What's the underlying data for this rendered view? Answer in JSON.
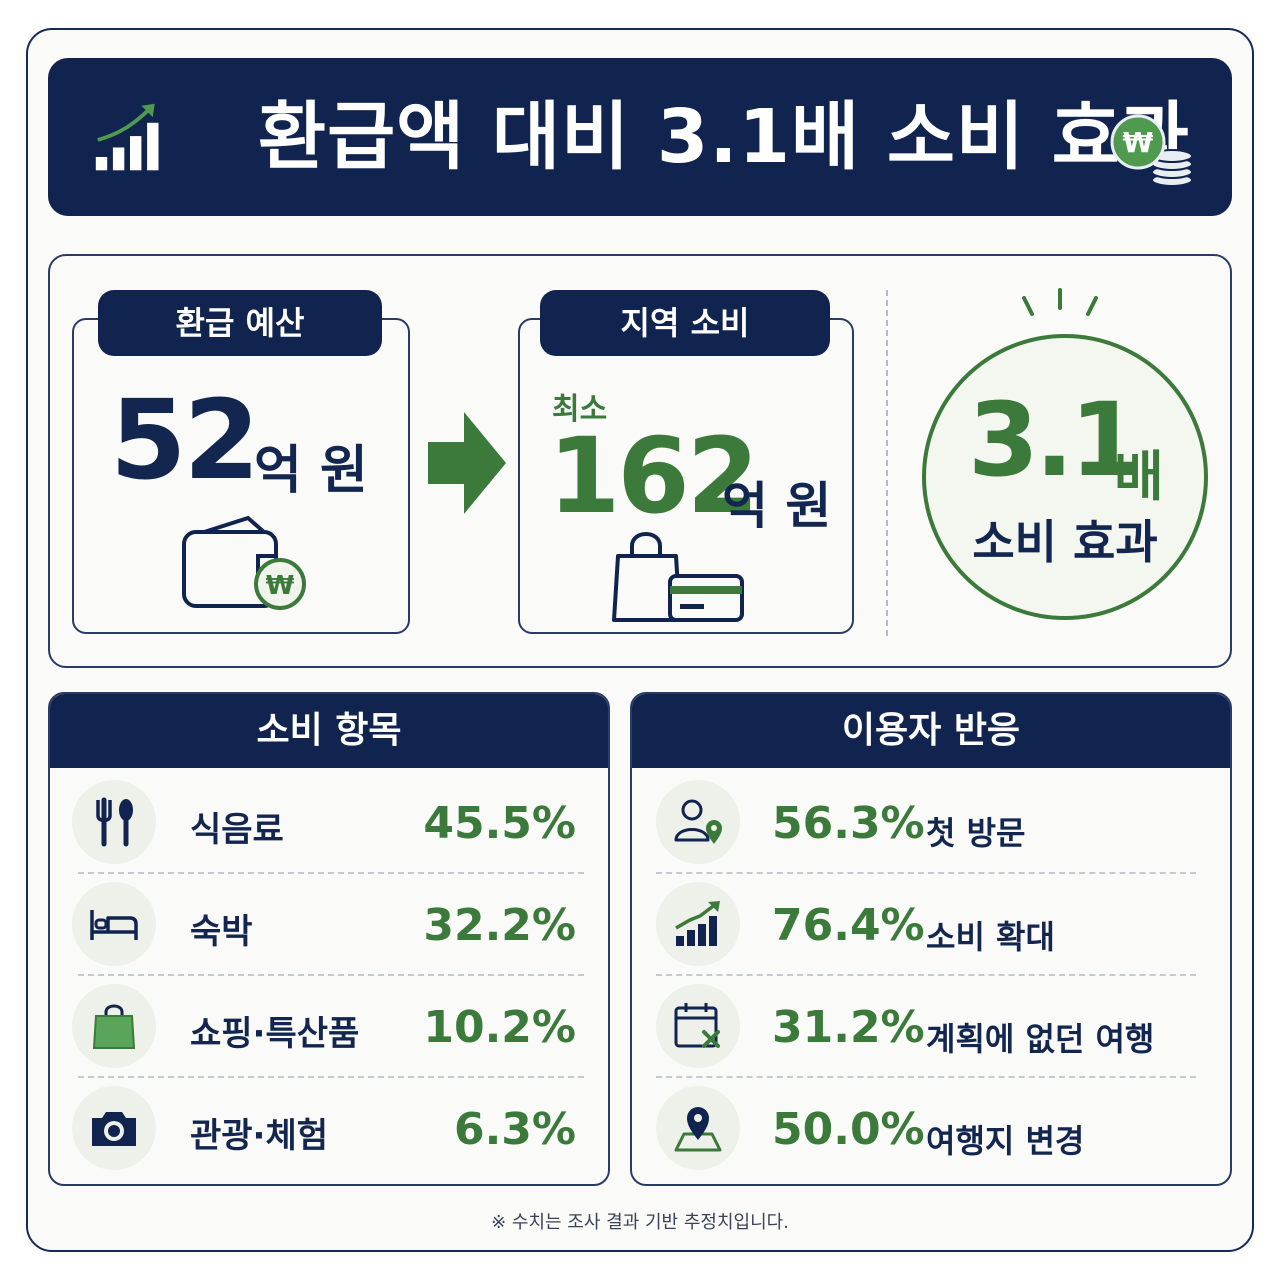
{
  "header": {
    "title": "환급액 대비 3.1배 소비 효과",
    "left_icon": "rising-bar-chart-icon",
    "right_icon": "won-coin-stack-icon"
  },
  "budget": {
    "label": "환급 예산",
    "value": "52",
    "unit": "억 원",
    "icon": "wallet-won-icon"
  },
  "spending": {
    "label": "지역 소비",
    "prefix": "최소",
    "value": "162",
    "unit": "억 원",
    "icon": "shopping-bag-card-icon"
  },
  "multiplier": {
    "value": "3.1",
    "unit": "배",
    "caption": "소비 효과"
  },
  "categories": {
    "title": "소비 항목",
    "items": [
      {
        "label": "식음료",
        "value": "45.5%",
        "icon": "fork-spoon-icon"
      },
      {
        "label": "숙박",
        "value": "32.2%",
        "icon": "bed-icon"
      },
      {
        "label": "쇼핑·특산품",
        "value": "10.2%",
        "icon": "shopping-bag-icon"
      },
      {
        "label": "관광·체험",
        "value": "6.3%",
        "icon": "camera-icon"
      }
    ]
  },
  "responses": {
    "title": "이용자 반응",
    "items": [
      {
        "value": "56.3%",
        "label": "첫 방문",
        "icon": "person-location-icon"
      },
      {
        "value": "76.4%",
        "label": "소비 확대",
        "icon": "growth-chart-icon"
      },
      {
        "value": "31.2%",
        "label": "계획에 없던 여행",
        "icon": "calendar-x-icon"
      },
      {
        "value": "50.0%",
        "label": "여행지 변경",
        "icon": "map-pin-icon"
      }
    ]
  },
  "footnote": "※ 수치는 조사 결과 기반 추정치입니다.",
  "colors": {
    "navy": "#10244f",
    "green": "#3b7a3b",
    "background": "#fafaf8"
  }
}
